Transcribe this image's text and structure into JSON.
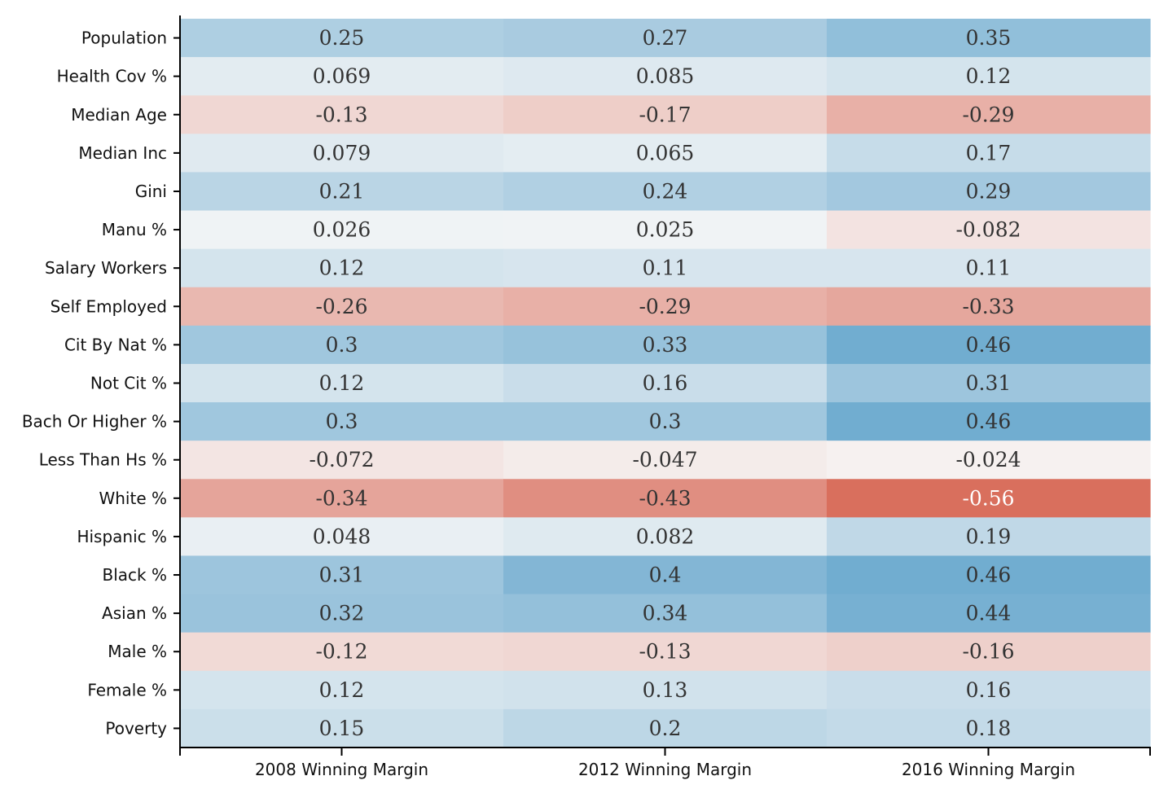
{
  "chart_data": {
    "type": "heatmap",
    "rows": [
      "Population",
      "Health Cov %",
      "Median Age",
      "Median Inc",
      "Gini",
      "Manu %",
      "Salary Workers",
      "Self Employed",
      "Cit By Nat %",
      "Not Cit %",
      "Bach Or Higher %",
      "Less Than Hs %",
      "White %",
      "Hispanic %",
      "Black %",
      "Asian %",
      "Male %",
      "Female %",
      "Poverty"
    ],
    "columns": [
      "2008 Winning Margin",
      "2012 Winning Margin",
      "2016 Winning Margin"
    ],
    "values": [
      [
        0.25,
        0.27,
        0.35
      ],
      [
        0.069,
        0.085,
        0.12
      ],
      [
        -0.13,
        -0.17,
        -0.29
      ],
      [
        0.079,
        0.065,
        0.17
      ],
      [
        0.21,
        0.24,
        0.29
      ],
      [
        0.026,
        0.025,
        -0.082
      ],
      [
        0.12,
        0.11,
        0.11
      ],
      [
        -0.26,
        -0.29,
        -0.33
      ],
      [
        0.3,
        0.33,
        0.46
      ],
      [
        0.12,
        0.16,
        0.31
      ],
      [
        0.3,
        0.3,
        0.46
      ],
      [
        -0.072,
        -0.047,
        -0.024
      ],
      [
        -0.34,
        -0.43,
        -0.56
      ],
      [
        0.048,
        0.082,
        0.19
      ],
      [
        0.31,
        0.4,
        0.46
      ],
      [
        0.32,
        0.34,
        0.44
      ],
      [
        -0.12,
        -0.13,
        -0.16
      ],
      [
        0.12,
        0.13,
        0.16
      ],
      [
        0.15,
        0.2,
        0.18
      ]
    ],
    "cell_labels": [
      [
        "0.25",
        "0.27",
        "0.35"
      ],
      [
        "0.069",
        "0.085",
        "0.12"
      ],
      [
        "-0.13",
        "-0.17",
        "-0.29"
      ],
      [
        "0.079",
        "0.065",
        "0.17"
      ],
      [
        "0.21",
        "0.24",
        "0.29"
      ],
      [
        "0.026",
        "0.025",
        "-0.082"
      ],
      [
        "0.12",
        "0.11",
        "0.11"
      ],
      [
        "-0.26",
        "-0.29",
        "-0.33"
      ],
      [
        "0.3",
        "0.33",
        "0.46"
      ],
      [
        "0.12",
        "0.16",
        "0.31"
      ],
      [
        "0.3",
        "0.3",
        "0.46"
      ],
      [
        "-0.072",
        "-0.047",
        "-0.024"
      ],
      [
        "-0.34",
        "-0.43",
        "-0.56"
      ],
      [
        "0.048",
        "0.082",
        "0.19"
      ],
      [
        "0.31",
        "0.4",
        "0.46"
      ],
      [
        "0.32",
        "0.34",
        "0.44"
      ],
      [
        "-0.12",
        "-0.13",
        "-0.16"
      ],
      [
        "0.12",
        "0.13",
        "0.16"
      ],
      [
        "0.15",
        "0.2",
        "0.18"
      ]
    ],
    "colormap": "diverging red-blue (negative = red, positive = blue)",
    "colors": {
      "negative": "#d6604d",
      "neutral": "#f7f7f7",
      "positive": "#4393c3",
      "text_dark": "#333333",
      "text_light": "#ffffff"
    },
    "color_range": [
      -1,
      1
    ],
    "grid": false,
    "legend": "none"
  }
}
